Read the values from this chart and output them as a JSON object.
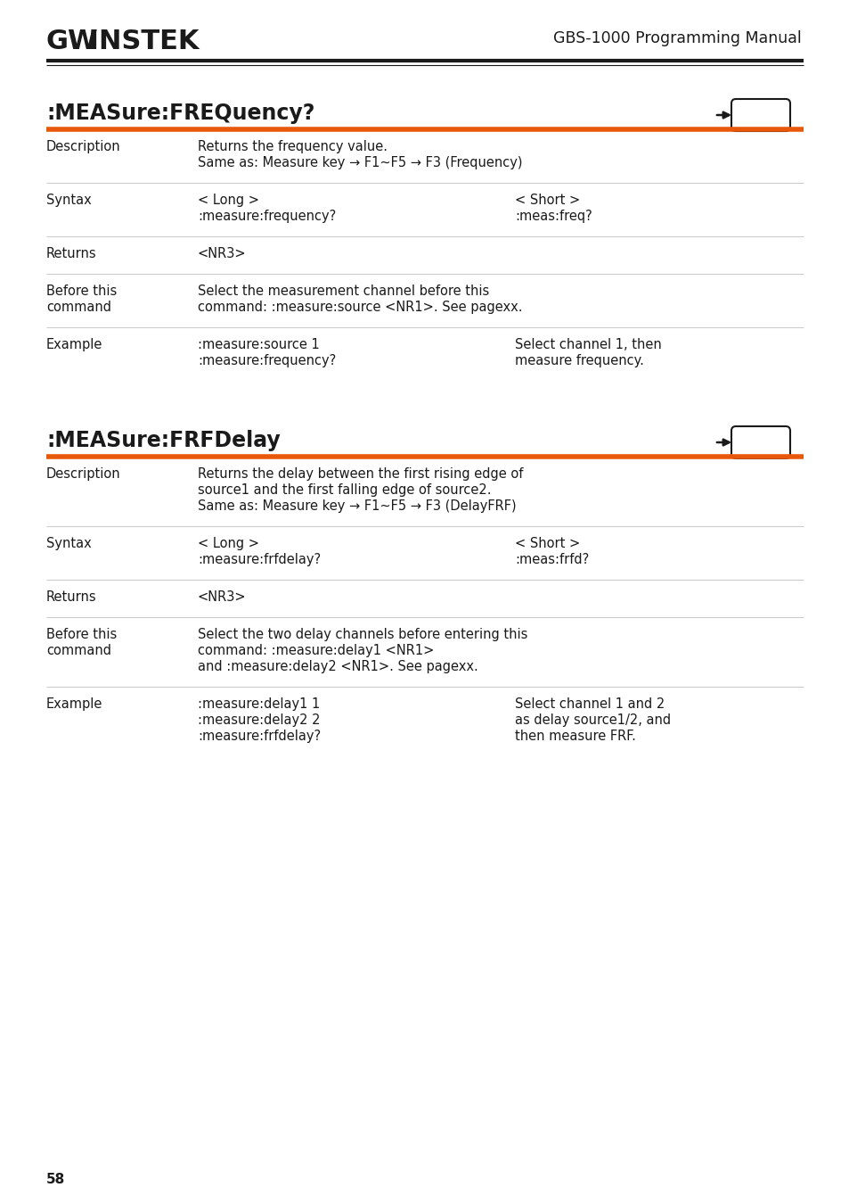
{
  "page_number": "58",
  "header_title": "GBS-1000 Programming Manual",
  "bg_color": "#ffffff",
  "text_color": "#1a1a1a",
  "orange_color": "#e8580a",
  "gray_line_color": "#cccccc",
  "section1": {
    "title": ":MEASure:FREQuency?",
    "rows": [
      {
        "label": "Description",
        "col1_lines": [
          "Returns the frequency value.",
          "Same as: Measure key → F1~F5 → F3 (Frequency)"
        ],
        "col2_lines": []
      },
      {
        "label": "Syntax",
        "col1_lines": [
          "< Long >",
          ":measure:frequency?"
        ],
        "col2_lines": [
          "< Short >",
          ":meas:freq?"
        ]
      },
      {
        "label": "Returns",
        "col1_lines": [
          "<NR3>"
        ],
        "col2_lines": []
      },
      {
        "label": "Before this\ncommand",
        "col1_lines": [
          "Select the measurement channel before this",
          "command: :measure:source <NR1>. See pagexx."
        ],
        "col2_lines": []
      },
      {
        "label": "Example",
        "col1_lines": [
          ":measure:source 1",
          ":measure:frequency?"
        ],
        "col2_lines": [
          "Select channel 1, then",
          "measure frequency."
        ]
      }
    ]
  },
  "section2": {
    "title": ":MEASure:FRFDelay",
    "rows": [
      {
        "label": "Description",
        "col1_lines": [
          "Returns the delay between the first rising edge of",
          "source1 and the first falling edge of source2.",
          "Same as: Measure key → F1~F5 → F3 (DelayFRF)"
        ],
        "col2_lines": []
      },
      {
        "label": "Syntax",
        "col1_lines": [
          "< Long >",
          ":measure:frfdelay?"
        ],
        "col2_lines": [
          "< Short >",
          ":meas:frfd?"
        ]
      },
      {
        "label": "Returns",
        "col1_lines": [
          "<NR3>"
        ],
        "col2_lines": []
      },
      {
        "label": "Before this\ncommand",
        "col1_lines": [
          "Select the two delay channels before entering this",
          "command: :measure:delay1 <NR1>",
          "and :measure:delay2 <NR1>. See pagexx."
        ],
        "col2_lines": []
      },
      {
        "label": "Example",
        "col1_lines": [
          ":measure:delay1 1",
          ":measure:delay2 2",
          ":measure:frfdelay?"
        ],
        "col2_lines": [
          "Select channel 1 and 2",
          "as delay source1/2, and",
          "then measure FRF."
        ]
      }
    ]
  }
}
